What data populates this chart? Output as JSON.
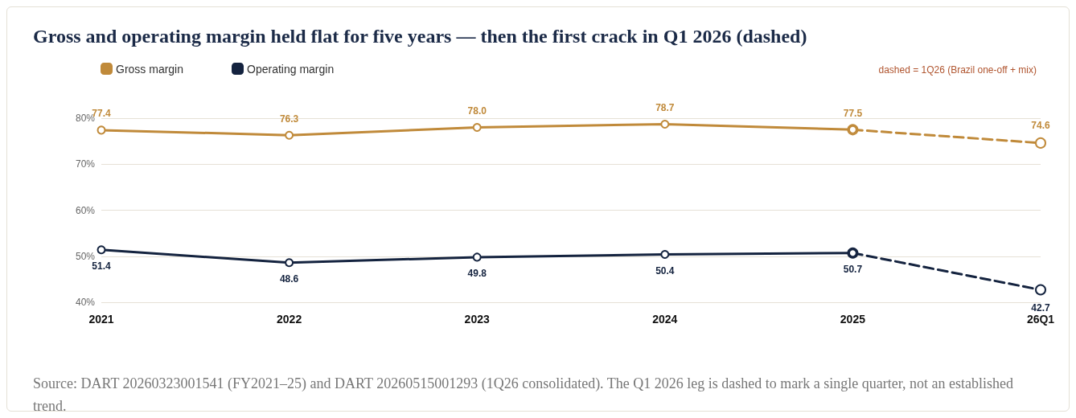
{
  "chart_data": {
    "type": "line",
    "title": "Gross and operating margin held flat for five years — then the first crack in Q1 2026 (dashed)",
    "categories": [
      "2021",
      "2022",
      "2023",
      "2024",
      "2025",
      "26Q1"
    ],
    "series": [
      {
        "name": "Gross margin",
        "color": "#c08a3a",
        "values": [
          77.4,
          76.3,
          78.0,
          78.7,
          77.5,
          null
        ],
        "value_labels": [
          "77.4",
          "76.3",
          "78.0",
          "78.7",
          "77.5",
          null
        ]
      },
      {
        "color": "#c08a3a",
        "line_style": "dashed",
        "values": [
          null,
          null,
          null,
          null,
          77.5,
          74.6
        ],
        "value_labels": [
          null,
          null,
          null,
          null,
          null,
          "74.6"
        ]
      },
      {
        "name": "Operating margin",
        "color": "#14233f",
        "values": [
          51.4,
          48.6,
          49.8,
          50.4,
          50.7,
          null
        ],
        "value_labels": [
          "51.4",
          "48.6",
          "49.8",
          "50.4",
          "50.7",
          null
        ]
      },
      {
        "color": "#14233f",
        "line_style": "dashed",
        "values": [
          null,
          null,
          null,
          null,
          50.7,
          42.7
        ],
        "value_labels": [
          null,
          null,
          null,
          null,
          null,
          "42.7"
        ]
      }
    ],
    "ylim": [
      40,
      80
    ],
    "yticks": [
      {
        "value": 40,
        "label": "40%"
      },
      {
        "value": 50,
        "label": "50%"
      },
      {
        "value": 60,
        "label": "60%"
      },
      {
        "value": 70,
        "label": "70%"
      },
      {
        "value": 80,
        "label": "80%"
      }
    ],
    "grid": "y",
    "legend": "top left",
    "marker": "circle",
    "line_style": "solid",
    "annotations": [
      "dashed = 1Q26 (Brazil one-off + mix)",
      "Source: DART 20260323001541 (FY2021–25) and DART 20260515001293 (1Q26 consolidated). The Q1 2026 leg is dashed to mark a single quarter, not an established trend."
    ]
  }
}
